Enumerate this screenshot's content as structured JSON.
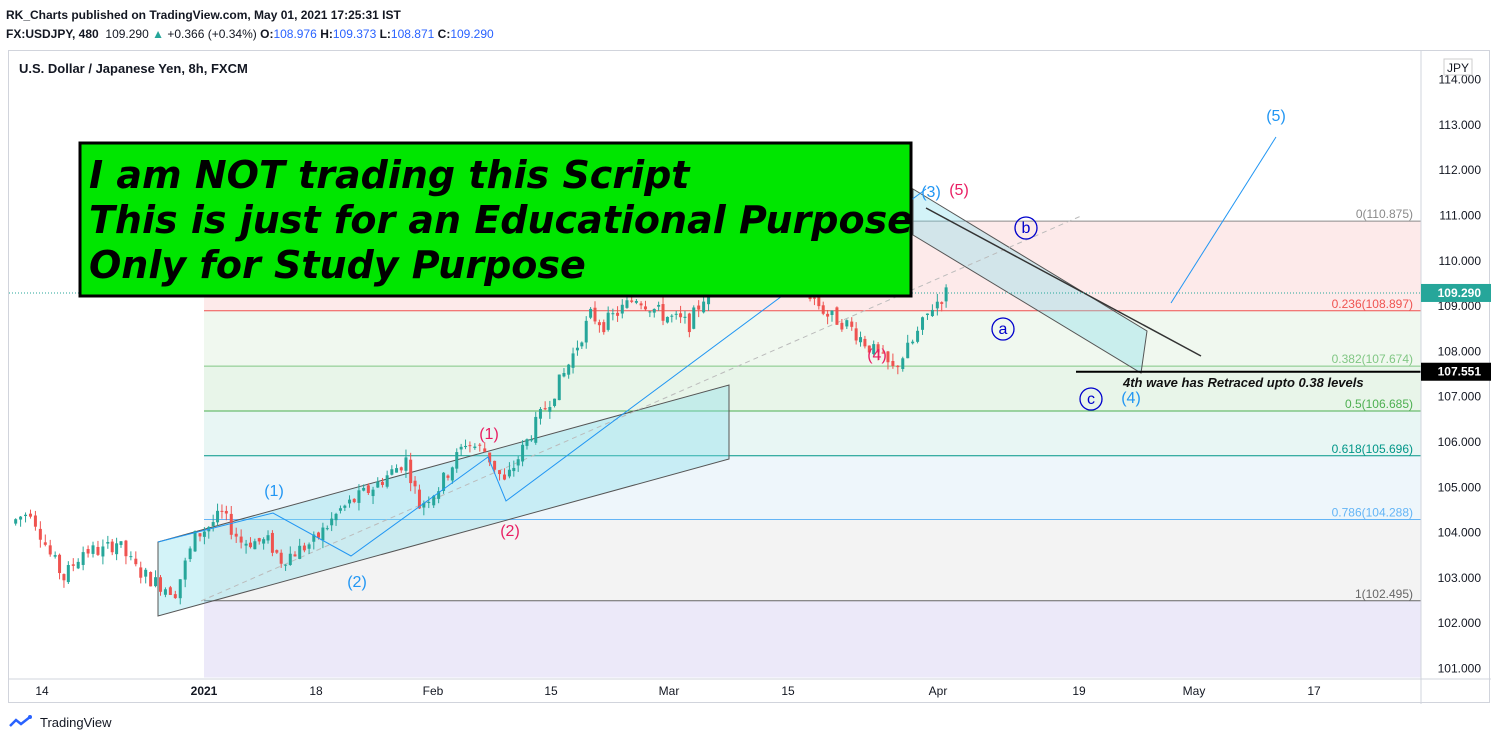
{
  "header": {
    "line1": "RK_Charts published on TradingView.com, May 01, 2021 17:25:31 IST",
    "symbol": "FX:USDJPY, 480",
    "last": "109.290",
    "change": "+0.366 (+0.34%)",
    "o_label": "O:",
    "o_value": "108.976",
    "h_label": "H:",
    "h_value": "109.373",
    "l_label": "L:",
    "l_value": "108.871",
    "c_label": "C:",
    "c_value": "109.290"
  },
  "chart_title": "U.S. Dollar / Japanese Yen, 8h, FXCM",
  "currency_label": "JPY",
  "banner": {
    "lines": [
      "I am NOT trading this Script",
      "This is just for an Educational Purpose",
      "Only for Study Purpose"
    ]
  },
  "annotation": "4th wave has Retraced upto 0.38 levels",
  "footer_brand": "TradingView",
  "colors": {
    "up": "#26a69a",
    "down": "#ef5350",
    "blue": "#2196f3",
    "pink": "#e91e63",
    "banner": "#00e600"
  },
  "chart_data": {
    "type": "candlestick",
    "title": "U.S. Dollar / Japanese Yen, 8h, FXCM",
    "ylim": [
      100.7,
      115.0
    ],
    "y_ticks": [
      "101.000",
      "102.000",
      "103.000",
      "104.000",
      "105.000",
      "106.000",
      "107.000",
      "108.000",
      "109.000",
      "110.000",
      "111.000",
      "112.000",
      "113.000",
      "114.000"
    ],
    "x_ticks": [
      "14",
      "2021",
      "18",
      "Feb",
      "15",
      "Mar",
      "15",
      "Apr",
      "19",
      "May",
      "17"
    ],
    "last_price": "109.290",
    "marked_price": "107.551",
    "fib_levels": [
      {
        "label": "0(110.875)",
        "value": 110.875
      },
      {
        "label": "0.236(108.897)",
        "value": 108.897
      },
      {
        "label": "0.382(107.674)",
        "value": 107.674
      },
      {
        "label": "0.5(106.685)",
        "value": 106.685
      },
      {
        "label": "0.618(105.696)",
        "value": 105.696
      },
      {
        "label": "0.786(104.288)",
        "value": 104.288
      },
      {
        "label": "1(102.495)",
        "value": 102.495
      }
    ],
    "wave_labels": [
      "(1)",
      "(2)",
      "(1)",
      "(2)",
      "(3)",
      "(5)",
      "(4)",
      "a",
      "b",
      "c",
      "(4)",
      "(5)"
    ],
    "price_path": [
      [
        "2020-12-10",
        104.2
      ],
      [
        "2020-12-13",
        104.5
      ],
      [
        "2020-12-16",
        103.5
      ],
      [
        "2020-12-18",
        103.0
      ],
      [
        "2020-12-21",
        103.6
      ],
      [
        "2020-12-24",
        103.6
      ],
      [
        "2020-12-26",
        103.8
      ],
      [
        "2020-12-29",
        103.2
      ],
      [
        "2021-01-01",
        102.9
      ],
      [
        "2021-01-04",
        102.7
      ],
      [
        "2021-01-07",
        103.9
      ],
      [
        "2021-01-11",
        104.4
      ],
      [
        "2021-01-14",
        103.8
      ],
      [
        "2021-01-18",
        103.8
      ],
      [
        "2021-01-20",
        103.4
      ],
      [
        "2021-01-25",
        103.8
      ],
      [
        "2021-01-29",
        104.5
      ],
      [
        "2021-02-03",
        105.0
      ],
      [
        "2021-02-08",
        105.6
      ],
      [
        "2021-02-10",
        104.6
      ],
      [
        "2021-02-13",
        105.0
      ],
      [
        "2021-02-17",
        106.0
      ],
      [
        "2021-02-20",
        105.8
      ],
      [
        "2021-02-23",
        105.1
      ],
      [
        "2021-02-27",
        106.2
      ],
      [
        "2021-03-04",
        107.5
      ],
      [
        "2021-03-08",
        108.8
      ],
      [
        "2021-03-10",
        108.6
      ],
      [
        "2021-03-15",
        109.2
      ],
      [
        "2021-03-19",
        108.8
      ],
      [
        "2021-03-23",
        108.6
      ],
      [
        "2021-03-26",
        109.4
      ],
      [
        "2021-03-29",
        110.0
      ],
      [
        "2021-03-31",
        110.8
      ],
      [
        "2021-04-02",
        110.6
      ],
      [
        "2021-04-06",
        109.9
      ],
      [
        "2021-04-09",
        109.5
      ],
      [
        "2021-04-13",
        108.8
      ],
      [
        "2021-04-16",
        108.6
      ],
      [
        "2021-04-20",
        108.0
      ],
      [
        "2021-04-23",
        107.6
      ],
      [
        "2021-04-26",
        108.2
      ],
      [
        "2021-04-29",
        109.0
      ],
      [
        "2021-05-01",
        109.3
      ]
    ]
  }
}
